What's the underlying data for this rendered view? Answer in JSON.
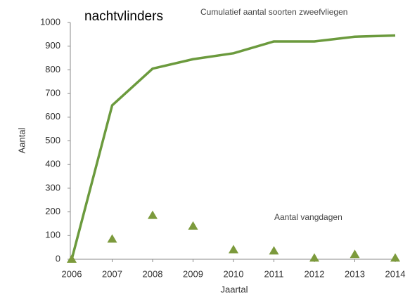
{
  "chart_data": {
    "type": "line",
    "title": "nachtvlinders",
    "x_label": "Jaartal",
    "y_label": "Aantal",
    "x": [
      2006,
      2007,
      2008,
      2009,
      2010,
      2011,
      2012,
      2013,
      2014
    ],
    "series": [
      {
        "name": "Cumulatief aantal soorten zweefvliegen",
        "color": "#6b9a3d",
        "marker": "none",
        "line": true,
        "values": [
          0,
          650,
          805,
          845,
          870,
          920,
          920,
          940,
          945
        ]
      },
      {
        "name": "Aantal vangdagen",
        "color": "#7c9a3c",
        "marker": "triangle",
        "line": false,
        "values": [
          0,
          85,
          185,
          140,
          40,
          35,
          5,
          20,
          5
        ]
      }
    ],
    "xlim": [
      2006,
      2014
    ],
    "xticks": [
      2006,
      2007,
      2008,
      2009,
      2010,
      2011,
      2012,
      2013,
      2014
    ],
    "ylim": [
      0,
      1000
    ],
    "yticks": [
      0,
      100,
      200,
      300,
      400,
      500,
      600,
      700,
      800,
      900,
      1000
    ],
    "grid": false
  }
}
